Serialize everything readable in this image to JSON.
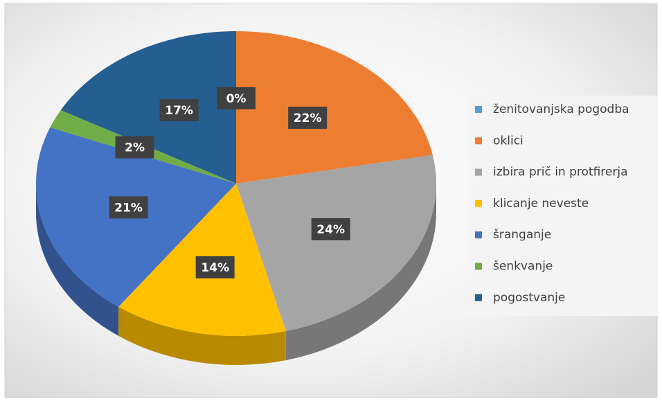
{
  "chart_data": {
    "type": "pie",
    "categories": [
      "ženitovanjska pogodba",
      "oklici",
      "izbira prič in protfirerja",
      "klicanje neveste",
      "šranganje",
      "šenkvanje",
      "pogostvanje"
    ],
    "values": [
      0,
      22,
      24,
      14,
      21,
      2,
      17
    ],
    "value_labels": [
      "0%",
      "22%",
      "24%",
      "14%",
      "21%",
      "2%",
      "17%"
    ],
    "colors": [
      "#5b9bd5",
      "#ed7d31",
      "#a5a5a5",
      "#ffc000",
      "#4472c4",
      "#70ad47",
      "#255e91"
    ],
    "legend": "right"
  }
}
